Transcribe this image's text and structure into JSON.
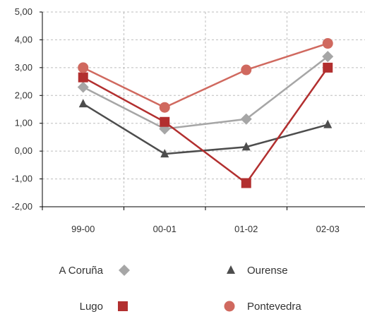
{
  "chart_data": {
    "type": "line",
    "categories": [
      "99-00",
      "00-01",
      "01-02",
      "02-03"
    ],
    "ylim": [
      -2,
      5
    ],
    "yticks": [
      "5,00",
      "4,00",
      "3,00",
      "2,00",
      "1,00",
      "0,00",
      "-1,00",
      "-2,00"
    ],
    "grid": true,
    "legend_position": "bottom",
    "series": [
      {
        "name": "A Coruña",
        "values": [
          2.3,
          0.8,
          1.15,
          3.4
        ],
        "color": "#a6a6a6",
        "marker": "diamond"
      },
      {
        "name": "Ourense",
        "values": [
          1.7,
          -0.1,
          0.15,
          0.95
        ],
        "color": "#4d4d4d",
        "marker": "triangle"
      },
      {
        "name": "Lugo",
        "values": [
          2.65,
          1.05,
          -1.15,
          3.0
        ],
        "color": "#b22f2f",
        "marker": "square"
      },
      {
        "name": "Pontevedra",
        "values": [
          3.0,
          1.57,
          2.92,
          3.87
        ],
        "color": "#d0695f",
        "marker": "circle"
      }
    ]
  }
}
